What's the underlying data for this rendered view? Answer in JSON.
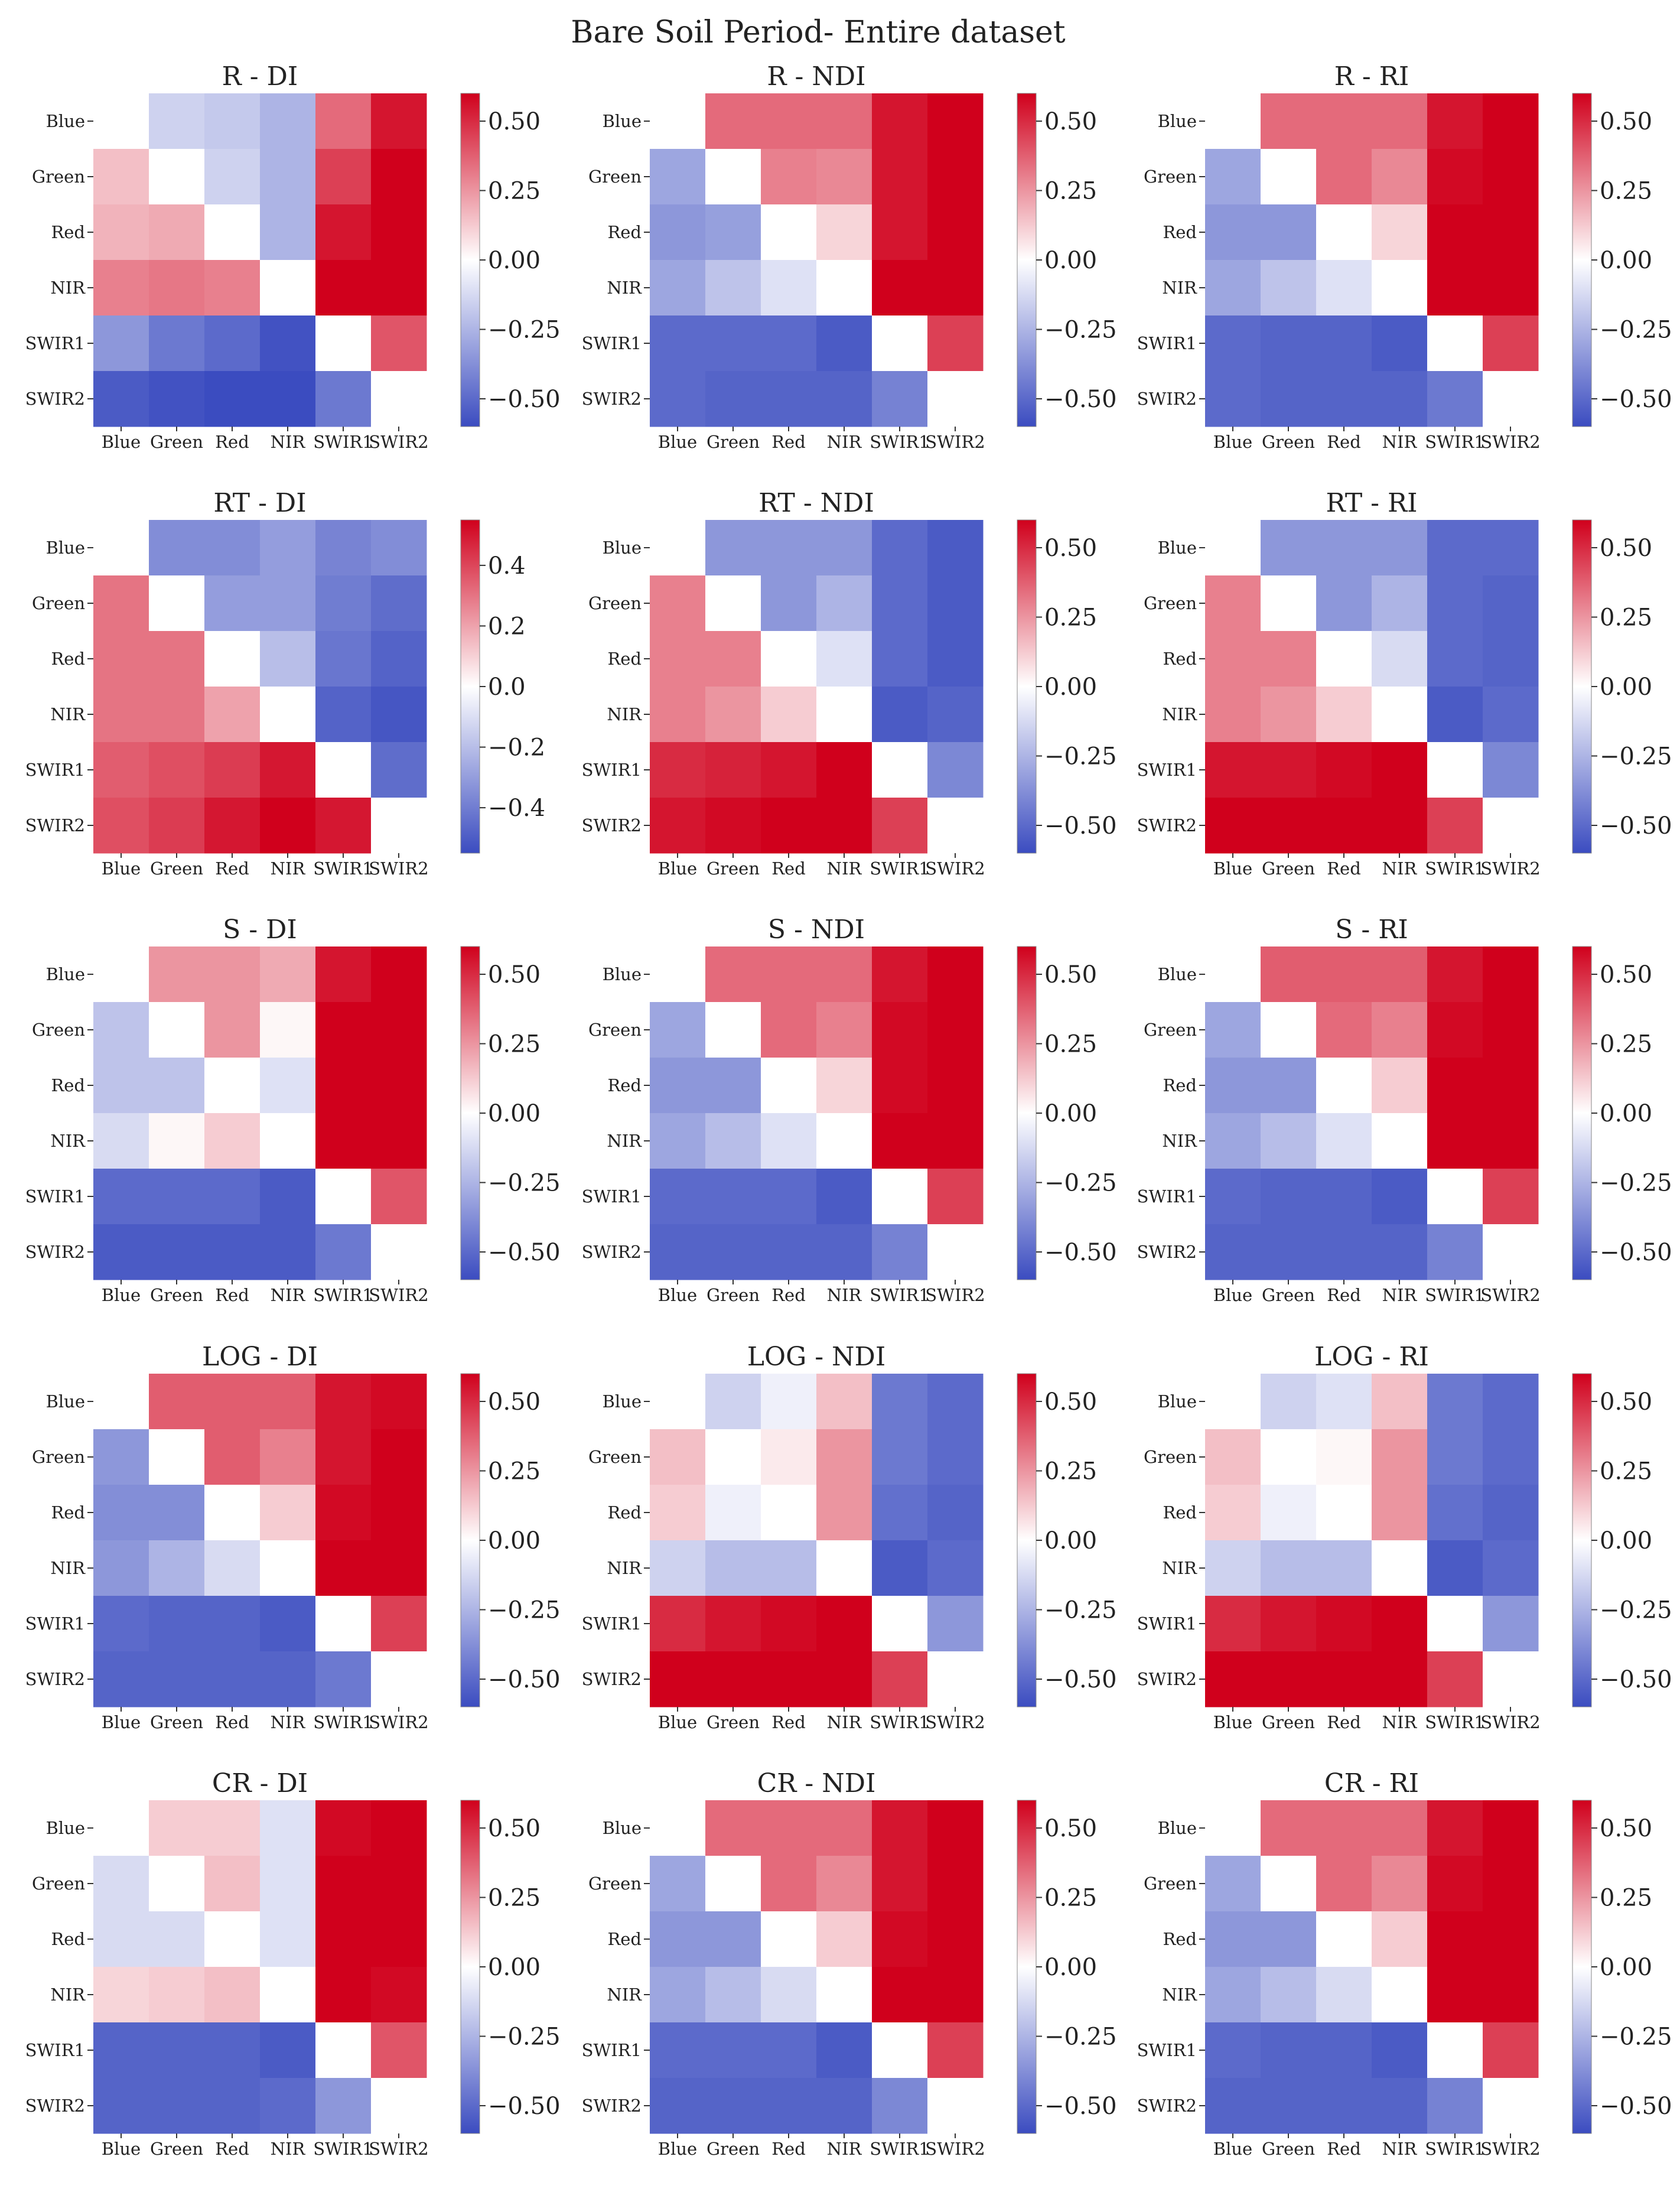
{
  "figure": {
    "title": "Bare Soil Period- Entire  dataset"
  },
  "colors": {
    "neg": "#3b4cc0",
    "mid": "#ffffff",
    "pos": "#d0001c"
  },
  "chart_data": [
    {
      "type": "heatmap",
      "title": "R - DI",
      "row": 0,
      "col": 0,
      "categories": [
        "Blue",
        "Green",
        "Red",
        "NIR",
        "SWIR1",
        "SWIR2"
      ],
      "values": [
        [
          null,
          -0.15,
          -0.18,
          -0.25,
          0.35,
          0.55
        ],
        [
          0.15,
          null,
          -0.15,
          -0.25,
          0.45,
          0.6
        ],
        [
          0.18,
          0.2,
          null,
          -0.25,
          0.55,
          0.65
        ],
        [
          0.3,
          0.32,
          0.3,
          null,
          0.65,
          0.62
        ],
        [
          -0.35,
          -0.45,
          -0.5,
          -0.58,
          null,
          0.4
        ],
        [
          -0.55,
          -0.58,
          -0.6,
          -0.6,
          -0.45,
          null
        ]
      ],
      "vmin": -0.6,
      "vmax": 0.6,
      "ticks": [
        0.5,
        0.25,
        0.0,
        -0.25,
        -0.5
      ],
      "tick_labels": [
        "0.50",
        "0.25",
        "0.00",
        "−0.25",
        "−0.50"
      ]
    },
    {
      "type": "heatmap",
      "title": "R - NDI",
      "row": 0,
      "col": 1,
      "categories": [
        "Blue",
        "Green",
        "Red",
        "NIR",
        "SWIR1",
        "SWIR2"
      ],
      "values": [
        [
          null,
          0.35,
          0.35,
          0.35,
          0.55,
          0.6
        ],
        [
          -0.3,
          null,
          0.3,
          0.28,
          0.55,
          0.6
        ],
        [
          -0.35,
          -0.32,
          null,
          0.1,
          0.55,
          0.62
        ],
        [
          -0.3,
          -0.2,
          -0.1,
          null,
          0.65,
          0.62
        ],
        [
          -0.5,
          -0.5,
          -0.5,
          -0.55,
          null,
          0.45
        ],
        [
          -0.5,
          -0.52,
          -0.52,
          -0.52,
          -0.42,
          null
        ]
      ],
      "vmin": -0.6,
      "vmax": 0.6,
      "ticks": [
        0.5,
        0.25,
        0.0,
        -0.25,
        -0.5
      ],
      "tick_labels": [
        "0.50",
        "0.25",
        "0.00",
        "−0.25",
        "−0.50"
      ]
    },
    {
      "type": "heatmap",
      "title": "R - RI",
      "row": 0,
      "col": 2,
      "categories": [
        "Blue",
        "Green",
        "Red",
        "NIR",
        "SWIR1",
        "SWIR2"
      ],
      "values": [
        [
          null,
          0.35,
          0.35,
          0.35,
          0.55,
          0.62
        ],
        [
          -0.3,
          null,
          0.35,
          0.28,
          0.58,
          0.63
        ],
        [
          -0.35,
          -0.35,
          null,
          0.1,
          0.6,
          0.65
        ],
        [
          -0.3,
          -0.2,
          -0.1,
          null,
          0.65,
          0.65
        ],
        [
          -0.5,
          -0.52,
          -0.52,
          -0.55,
          null,
          0.45
        ],
        [
          -0.5,
          -0.52,
          -0.52,
          -0.52,
          -0.45,
          null
        ]
      ],
      "vmin": -0.6,
      "vmax": 0.6,
      "ticks": [
        0.5,
        0.25,
        0.0,
        -0.25,
        -0.5
      ],
      "tick_labels": [
        "0.50",
        "0.25",
        "0.00",
        "−0.25",
        "−0.50"
      ]
    },
    {
      "type": "heatmap",
      "title": "RT - DI",
      "row": 1,
      "col": 0,
      "categories": [
        "Blue",
        "Green",
        "Red",
        "NIR",
        "SWIR1",
        "SWIR2"
      ],
      "values": [
        [
          null,
          -0.35,
          -0.35,
          -0.3,
          -0.38,
          -0.35
        ],
        [
          0.3,
          null,
          -0.3,
          -0.3,
          -0.4,
          -0.45
        ],
        [
          0.3,
          0.3,
          null,
          -0.2,
          -0.42,
          -0.48
        ],
        [
          0.3,
          0.3,
          0.2,
          null,
          -0.48,
          -0.52
        ],
        [
          0.35,
          0.38,
          0.42,
          0.5,
          null,
          -0.45
        ],
        [
          0.38,
          0.42,
          0.5,
          0.55,
          0.5,
          null
        ]
      ],
      "vmin": -0.55,
      "vmax": 0.55,
      "ticks": [
        0.4,
        0.2,
        0.0,
        -0.2,
        -0.4
      ],
      "tick_labels": [
        "0.4",
        "0.2",
        "0.0",
        "−0.2",
        "−0.4"
      ]
    },
    {
      "type": "heatmap",
      "title": "RT - NDI",
      "row": 1,
      "col": 1,
      "categories": [
        "Blue",
        "Green",
        "Red",
        "NIR",
        "SWIR1",
        "SWIR2"
      ],
      "values": [
        [
          null,
          -0.35,
          -0.35,
          -0.35,
          -0.5,
          -0.55
        ],
        [
          0.3,
          null,
          -0.35,
          -0.25,
          -0.5,
          -0.55
        ],
        [
          0.3,
          0.3,
          null,
          -0.1,
          -0.5,
          -0.55
        ],
        [
          0.3,
          0.25,
          0.12,
          null,
          -0.55,
          -0.52
        ],
        [
          0.5,
          0.52,
          0.55,
          0.62,
          null,
          -0.4
        ],
        [
          0.55,
          0.58,
          0.6,
          0.6,
          0.45,
          null
        ]
      ],
      "vmin": -0.6,
      "vmax": 0.6,
      "ticks": [
        0.5,
        0.25,
        0.0,
        -0.25,
        -0.5
      ],
      "tick_labels": [
        "0.50",
        "0.25",
        "0.00",
        "−0.25",
        "−0.50"
      ]
    },
    {
      "type": "heatmap",
      "title": "RT - RI",
      "row": 1,
      "col": 2,
      "categories": [
        "Blue",
        "Green",
        "Red",
        "NIR",
        "SWIR1",
        "SWIR2"
      ],
      "values": [
        [
          null,
          -0.35,
          -0.35,
          -0.35,
          -0.5,
          -0.5
        ],
        [
          0.3,
          null,
          -0.35,
          -0.25,
          -0.5,
          -0.52
        ],
        [
          0.3,
          0.3,
          null,
          -0.12,
          -0.5,
          -0.52
        ],
        [
          0.3,
          0.25,
          0.12,
          null,
          -0.55,
          -0.5
        ],
        [
          0.55,
          0.55,
          0.58,
          0.62,
          null,
          -0.4
        ],
        [
          0.62,
          0.62,
          0.62,
          0.62,
          0.45,
          null
        ]
      ],
      "vmin": -0.6,
      "vmax": 0.6,
      "ticks": [
        0.5,
        0.25,
        0.0,
        -0.25,
        -0.5
      ],
      "tick_labels": [
        "0.50",
        "0.25",
        "0.00",
        "−0.25",
        "−0.50"
      ]
    },
    {
      "type": "heatmap",
      "title": "S - DI",
      "row": 2,
      "col": 0,
      "categories": [
        "Blue",
        "Green",
        "Red",
        "NIR",
        "SWIR1",
        "SWIR2"
      ],
      "values": [
        [
          null,
          0.25,
          0.25,
          0.2,
          0.55,
          0.6
        ],
        [
          -0.2,
          null,
          0.25,
          0.02,
          0.6,
          0.62
        ],
        [
          -0.2,
          -0.2,
          null,
          -0.1,
          0.6,
          0.62
        ],
        [
          -0.12,
          0.02,
          0.12,
          null,
          0.65,
          0.6
        ],
        [
          -0.5,
          -0.5,
          -0.5,
          -0.55,
          null,
          0.4
        ],
        [
          -0.55,
          -0.55,
          -0.55,
          -0.55,
          -0.45,
          null
        ]
      ],
      "vmin": -0.6,
      "vmax": 0.6,
      "ticks": [
        0.5,
        0.25,
        0.0,
        -0.25,
        -0.5
      ],
      "tick_labels": [
        "0.50",
        "0.25",
        "0.00",
        "−0.25",
        "−0.50"
      ]
    },
    {
      "type": "heatmap",
      "title": "S - NDI",
      "row": 2,
      "col": 1,
      "categories": [
        "Blue",
        "Green",
        "Red",
        "NIR",
        "SWIR1",
        "SWIR2"
      ],
      "values": [
        [
          null,
          0.35,
          0.35,
          0.35,
          0.55,
          0.6
        ],
        [
          -0.3,
          null,
          0.35,
          0.3,
          0.58,
          0.6
        ],
        [
          -0.35,
          -0.35,
          null,
          0.1,
          0.58,
          0.62
        ],
        [
          -0.3,
          -0.22,
          -0.1,
          null,
          0.65,
          0.62
        ],
        [
          -0.5,
          -0.5,
          -0.5,
          -0.55,
          null,
          0.45
        ],
        [
          -0.52,
          -0.52,
          -0.52,
          -0.52,
          -0.42,
          null
        ]
      ],
      "vmin": -0.6,
      "vmax": 0.6,
      "ticks": [
        0.5,
        0.25,
        0.0,
        -0.25,
        -0.5
      ],
      "tick_labels": [
        "0.50",
        "0.25",
        "0.00",
        "−0.25",
        "−0.50"
      ]
    },
    {
      "type": "heatmap",
      "title": "S - RI",
      "row": 2,
      "col": 2,
      "categories": [
        "Blue",
        "Green",
        "Red",
        "NIR",
        "SWIR1",
        "SWIR2"
      ],
      "values": [
        [
          null,
          0.38,
          0.38,
          0.38,
          0.55,
          0.6
        ],
        [
          -0.3,
          null,
          0.35,
          0.3,
          0.58,
          0.62
        ],
        [
          -0.35,
          -0.35,
          null,
          0.12,
          0.6,
          0.63
        ],
        [
          -0.3,
          -0.22,
          -0.1,
          null,
          0.65,
          0.63
        ],
        [
          -0.5,
          -0.52,
          -0.52,
          -0.55,
          null,
          0.45
        ],
        [
          -0.52,
          -0.52,
          -0.52,
          -0.52,
          -0.42,
          null
        ]
      ],
      "vmin": -0.6,
      "vmax": 0.6,
      "ticks": [
        0.5,
        0.25,
        0.0,
        -0.25,
        -0.5
      ],
      "tick_labels": [
        "0.50",
        "0.25",
        "0.00",
        "−0.25",
        "−0.50"
      ]
    },
    {
      "type": "heatmap",
      "title": "LOG - DI",
      "row": 3,
      "col": 0,
      "categories": [
        "Blue",
        "Green",
        "Red",
        "NIR",
        "SWIR1",
        "SWIR2"
      ],
      "values": [
        [
          null,
          0.38,
          0.38,
          0.38,
          0.55,
          0.58
        ],
        [
          -0.35,
          null,
          0.38,
          0.3,
          0.55,
          0.6
        ],
        [
          -0.38,
          -0.38,
          null,
          0.12,
          0.58,
          0.62
        ],
        [
          -0.35,
          -0.25,
          -0.12,
          null,
          0.63,
          0.62
        ],
        [
          -0.5,
          -0.52,
          -0.52,
          -0.55,
          null,
          0.45
        ],
        [
          -0.52,
          -0.52,
          -0.52,
          -0.52,
          -0.45,
          null
        ]
      ],
      "vmin": -0.6,
      "vmax": 0.6,
      "ticks": [
        0.5,
        0.25,
        0.0,
        -0.25,
        -0.5
      ],
      "tick_labels": [
        "0.50",
        "0.25",
        "0.00",
        "−0.25",
        "−0.50"
      ]
    },
    {
      "type": "heatmap",
      "title": "LOG - NDI",
      "row": 3,
      "col": 1,
      "categories": [
        "Blue",
        "Green",
        "Red",
        "NIR",
        "SWIR1",
        "SWIR2"
      ],
      "values": [
        [
          null,
          -0.15,
          -0.05,
          0.15,
          -0.45,
          -0.5
        ],
        [
          0.15,
          null,
          0.05,
          0.25,
          -0.45,
          -0.5
        ],
        [
          0.12,
          -0.05,
          null,
          0.25,
          -0.48,
          -0.52
        ],
        [
          -0.15,
          -0.22,
          -0.22,
          null,
          -0.55,
          -0.5
        ],
        [
          0.5,
          0.55,
          0.58,
          0.62,
          null,
          -0.35
        ],
        [
          0.6,
          0.62,
          0.62,
          0.62,
          0.45,
          null
        ]
      ],
      "vmin": -0.6,
      "vmax": 0.6,
      "ticks": [
        0.5,
        0.25,
        0.0,
        -0.25,
        -0.5
      ],
      "tick_labels": [
        "0.50",
        "0.25",
        "0.00",
        "−0.25",
        "−0.50"
      ]
    },
    {
      "type": "heatmap",
      "title": "LOG - RI",
      "row": 3,
      "col": 2,
      "categories": [
        "Blue",
        "Green",
        "Red",
        "NIR",
        "SWIR1",
        "SWIR2"
      ],
      "values": [
        [
          null,
          -0.15,
          -0.1,
          0.15,
          -0.45,
          -0.5
        ],
        [
          0.15,
          null,
          0.02,
          0.25,
          -0.45,
          -0.5
        ],
        [
          0.12,
          -0.05,
          null,
          0.25,
          -0.48,
          -0.52
        ],
        [
          -0.15,
          -0.22,
          -0.22,
          null,
          -0.55,
          -0.5
        ],
        [
          0.5,
          0.55,
          0.58,
          0.62,
          null,
          -0.35
        ],
        [
          0.62,
          0.62,
          0.62,
          0.62,
          0.45,
          null
        ]
      ],
      "vmin": -0.6,
      "vmax": 0.6,
      "ticks": [
        0.5,
        0.25,
        0.0,
        -0.25,
        -0.5
      ],
      "tick_labels": [
        "0.50",
        "0.25",
        "0.00",
        "−0.25",
        "−0.50"
      ]
    },
    {
      "type": "heatmap",
      "title": "CR - DI",
      "row": 4,
      "col": 0,
      "categories": [
        "Blue",
        "Green",
        "Red",
        "NIR",
        "SWIR1",
        "SWIR2"
      ],
      "values": [
        [
          null,
          0.12,
          0.12,
          -0.1,
          0.58,
          0.6
        ],
        [
          -0.12,
          null,
          0.15,
          -0.1,
          0.6,
          0.62
        ],
        [
          -0.12,
          -0.12,
          null,
          -0.1,
          0.6,
          0.62
        ],
        [
          0.1,
          0.12,
          0.15,
          null,
          0.62,
          0.58
        ],
        [
          -0.52,
          -0.52,
          -0.52,
          -0.55,
          null,
          0.4
        ],
        [
          -0.52,
          -0.52,
          -0.52,
          -0.5,
          -0.35,
          null
        ]
      ],
      "vmin": -0.6,
      "vmax": 0.6,
      "ticks": [
        0.5,
        0.25,
        0.0,
        -0.25,
        -0.5
      ],
      "tick_labels": [
        "0.50",
        "0.25",
        "0.00",
        "−0.25",
        "−0.50"
      ]
    },
    {
      "type": "heatmap",
      "title": "CR - NDI",
      "row": 4,
      "col": 1,
      "categories": [
        "Blue",
        "Green",
        "Red",
        "NIR",
        "SWIR1",
        "SWIR2"
      ],
      "values": [
        [
          null,
          0.35,
          0.35,
          0.35,
          0.55,
          0.6
        ],
        [
          -0.3,
          null,
          0.35,
          0.28,
          0.55,
          0.6
        ],
        [
          -0.35,
          -0.35,
          null,
          0.12,
          0.58,
          0.62
        ],
        [
          -0.3,
          -0.22,
          -0.12,
          null,
          0.65,
          0.62
        ],
        [
          -0.5,
          -0.5,
          -0.5,
          -0.55,
          null,
          0.45
        ],
        [
          -0.52,
          -0.52,
          -0.52,
          -0.52,
          -0.4,
          null
        ]
      ],
      "vmin": -0.6,
      "vmax": 0.6,
      "ticks": [
        0.5,
        0.25,
        0.0,
        -0.25,
        -0.5
      ],
      "tick_labels": [
        "0.50",
        "0.25",
        "0.00",
        "−0.25",
        "−0.50"
      ]
    },
    {
      "type": "heatmap",
      "title": "CR - RI",
      "row": 4,
      "col": 2,
      "categories": [
        "Blue",
        "Green",
        "Red",
        "NIR",
        "SWIR1",
        "SWIR2"
      ],
      "values": [
        [
          null,
          0.35,
          0.35,
          0.35,
          0.55,
          0.6
        ],
        [
          -0.3,
          null,
          0.35,
          0.28,
          0.58,
          0.62
        ],
        [
          -0.35,
          -0.35,
          null,
          0.12,
          0.6,
          0.63
        ],
        [
          -0.3,
          -0.22,
          -0.12,
          null,
          0.65,
          0.63
        ],
        [
          -0.5,
          -0.52,
          -0.52,
          -0.55,
          null,
          0.45
        ],
        [
          -0.52,
          -0.52,
          -0.52,
          -0.52,
          -0.42,
          null
        ]
      ],
      "vmin": -0.6,
      "vmax": 0.6,
      "ticks": [
        0.5,
        0.25,
        0.0,
        -0.25,
        -0.5
      ],
      "tick_labels": [
        "0.50",
        "0.25",
        "0.00",
        "−0.25",
        "−0.50"
      ]
    }
  ]
}
